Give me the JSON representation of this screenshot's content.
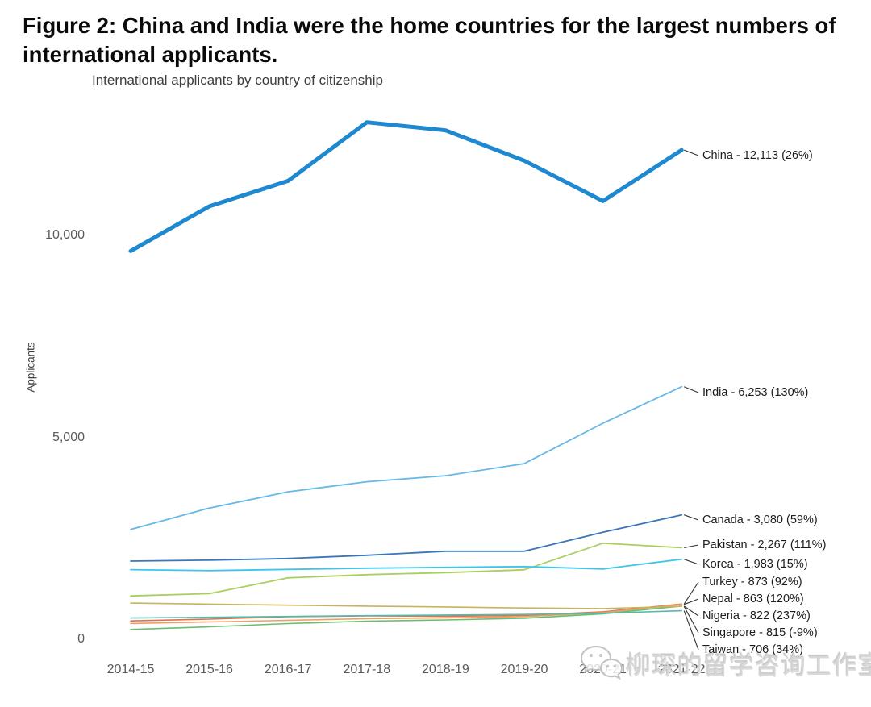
{
  "figure": {
    "title_line1": "Figure 2: China and India were the home countries for the largest numbers of",
    "title_line2": "international applicants."
  },
  "chart_data": {
    "type": "line",
    "title": "International applicants by country of citizenship",
    "ylabel": "Applicants",
    "xlabel": "",
    "grid": false,
    "legend_position": "right-end-labels",
    "ylim": [
      0,
      13100
    ],
    "x_categories": [
      "2014-15",
      "2015-16",
      "2016-17",
      "2017-18",
      "2018-19",
      "2019-20",
      "2020-21",
      "2021-22"
    ],
    "y_ticks": [
      {
        "value": 0,
        "label": "0"
      },
      {
        "value": 5000,
        "label": "5,000"
      },
      {
        "value": 10000,
        "label": "10,000"
      }
    ],
    "series": [
      {
        "name": "China",
        "end_label": "China - 12,113 (26%)",
        "final_value": 12113,
        "pct_change": "26%",
        "color": "#1E88D0",
        "width": 5,
        "values": [
          9613,
          10720,
          11350,
          12800,
          12600,
          11850,
          10850,
          12113
        ]
      },
      {
        "name": "India",
        "end_label": "India - 6,253 (130%)",
        "final_value": 6253,
        "pct_change": "130%",
        "color": "#66B8E6",
        "width": 1.8,
        "values": [
          2719,
          3250,
          3650,
          3900,
          4050,
          4350,
          5350,
          6253
        ]
      },
      {
        "name": "Canada",
        "end_label": "Canada - 3,080 (59%)",
        "final_value": 3080,
        "pct_change": "59%",
        "color": "#3B76B9",
        "width": 1.8,
        "values": [
          1937,
          1960,
          2000,
          2080,
          2180,
          2180,
          2650,
          3080
        ]
      },
      {
        "name": "Pakistan",
        "end_label": "Pakistan - 2,267 (111%)",
        "final_value": 2267,
        "pct_change": "111%",
        "color": "#A9CF60",
        "width": 1.8,
        "values": [
          1074,
          1130,
          1520,
          1600,
          1650,
          1720,
          2380,
          2267
        ]
      },
      {
        "name": "Korea",
        "end_label": "Korea - 1,983 (15%)",
        "final_value": 1983,
        "pct_change": "15%",
        "color": "#3EC5E8",
        "width": 1.8,
        "values": [
          1724,
          1700,
          1730,
          1760,
          1780,
          1800,
          1740,
          1983
        ]
      },
      {
        "name": "Turkey",
        "end_label": "Turkey - 873 (92%)",
        "final_value": 873,
        "pct_change": "92%",
        "color": "#E2714B",
        "width": 1.6,
        "values": [
          455,
          500,
          560,
          580,
          570,
          590,
          680,
          873
        ]
      },
      {
        "name": "Nepal",
        "end_label": "Nepal - 863 (120%)",
        "final_value": 863,
        "pct_change": "120%",
        "color": "#F09E63",
        "width": 1.6,
        "values": [
          392,
          430,
          470,
          510,
          530,
          560,
          660,
          863
        ]
      },
      {
        "name": "Nigeria",
        "end_label": "Nigeria - 822 (237%)",
        "final_value": 822,
        "pct_change": "237%",
        "color": "#69BE6E",
        "width": 1.6,
        "values": [
          244,
          310,
          390,
          450,
          480,
          520,
          630,
          822
        ]
      },
      {
        "name": "Singapore",
        "end_label": "Singapore - 815 (-9%)",
        "final_value": 815,
        "pct_change": "-9%",
        "color": "#C7B45C",
        "width": 1.6,
        "values": [
          896,
          870,
          845,
          820,
          800,
          775,
          760,
          815
        ]
      },
      {
        "name": "Taiwan",
        "end_label": "Taiwan - 706 (34%)",
        "final_value": 706,
        "pct_change": "34%",
        "color": "#56B8A9",
        "width": 1.6,
        "values": [
          527,
          545,
          565,
          585,
          600,
          615,
          645,
          706
        ]
      }
    ]
  },
  "watermark": {
    "text": "柳琛的留学咨询工作室",
    "icon": "wechat-icon"
  }
}
